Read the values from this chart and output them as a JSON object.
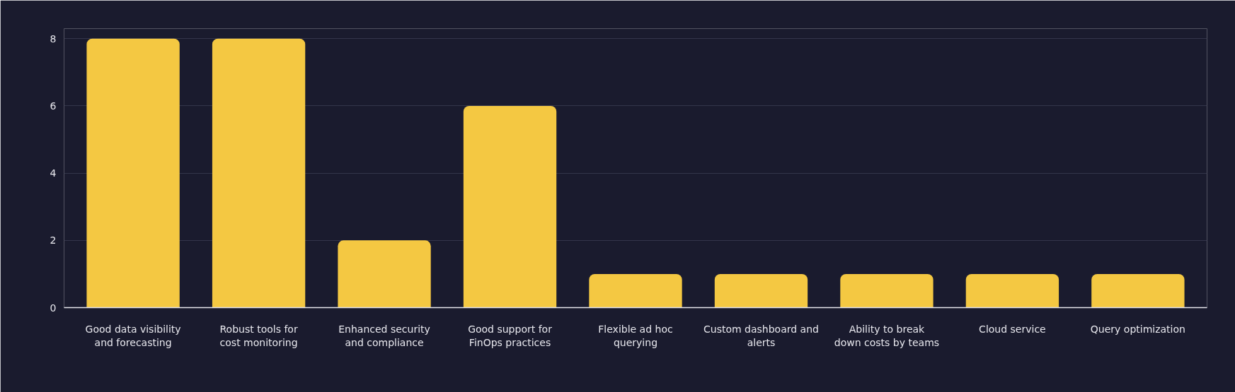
{
  "chart_data": {
    "type": "bar",
    "categories": [
      "Good data visibility and forecasting",
      "Robust tools for cost monitoring",
      "Enhanced security and compliance",
      "Good support for FinOps practices",
      "Flexible ad hoc querying",
      "Custom dashboard and alerts",
      "Ability to break down costs by teams",
      "Cloud service",
      "Query optimization"
    ],
    "values": [
      8,
      8,
      2,
      6,
      1,
      1,
      1,
      1,
      1
    ],
    "color": "#f4c842",
    "ylim": [
      0,
      8.3
    ],
    "yticks": [
      0,
      2,
      4,
      6,
      8
    ],
    "grid": "y"
  }
}
